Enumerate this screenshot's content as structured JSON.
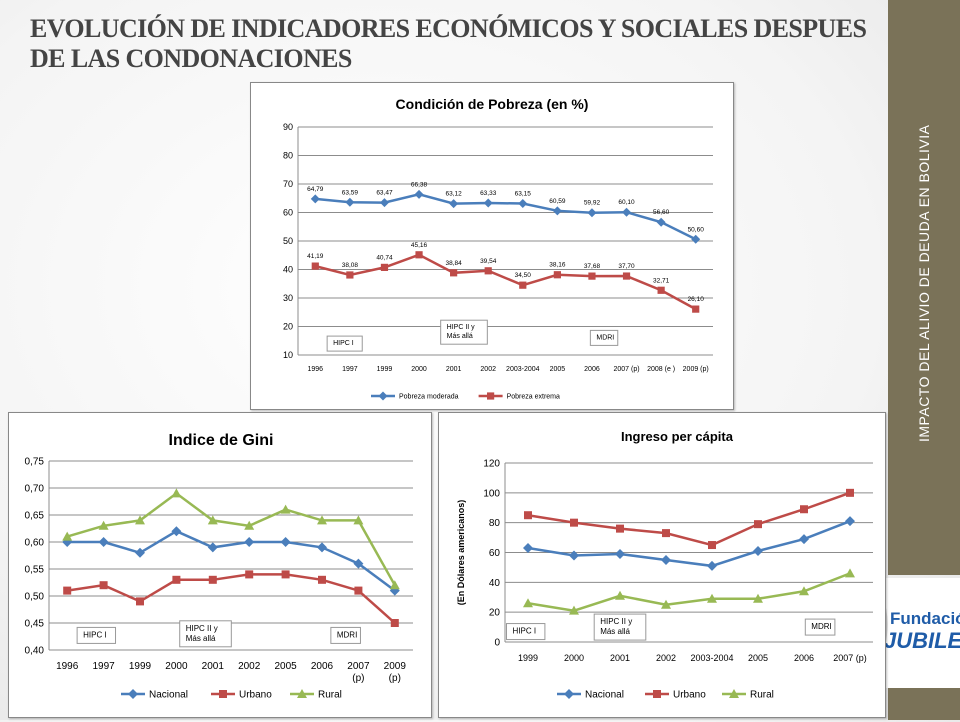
{
  "page": {
    "title": "EVOLUCIÓN DE INDICADORES ECONÓMICOS Y SOCIALES DESPUES DE LAS CONDONACIONES",
    "sidebar_text": "IMPACTO DEL ALIVIO DE DEUDA EN BOLIVIA",
    "logo": {
      "line1": "Fundación",
      "line2": "JUBILEO",
      "color": "#1f5ca8"
    }
  },
  "colors": {
    "blue": "#4a7ebb",
    "red": "#be4b48",
    "green": "#98b954",
    "sidebar": "#7a7258"
  },
  "chart_data": [
    {
      "type": "line",
      "title": "Condición de Pobreza (en %)",
      "categories": [
        "1996",
        "1997",
        "1999",
        "2000",
        "2001",
        "2002",
        "2003-2004",
        "2005",
        "2006",
        "2007 (p)",
        "2008 (e )",
        "2009 (p)"
      ],
      "ylim": [
        10,
        90
      ],
      "yticks": [
        "10",
        "20",
        "30",
        "40",
        "50",
        "60",
        "70",
        "80",
        "90"
      ],
      "series": [
        {
          "name": "Pobreza moderada",
          "color": "#4a7ebb",
          "marker": "diamond",
          "values": [
            64.79,
            63.59,
            63.47,
            66.38,
            63.12,
            63.33,
            63.15,
            60.59,
            59.92,
            60.1,
            56.6,
            50.6
          ],
          "labels": [
            "64,79",
            "63,59",
            "63,47",
            "66,38",
            "63,12",
            "63,33",
            "63,15",
            "60,59",
            "59,92",
            "60,10",
            "56,60",
            "50,60"
          ]
        },
        {
          "name": "Pobreza extrema",
          "color": "#be4b48",
          "marker": "square",
          "values": [
            41.19,
            38.08,
            40.74,
            45.16,
            38.84,
            39.54,
            34.5,
            38.16,
            37.68,
            37.7,
            32.71,
            26.1
          ],
          "labels": [
            "41,19",
            "38,08",
            "40,74",
            "45,16",
            "38,84",
            "39,54",
            "34,50",
            "38,16",
            "37,68",
            "37,70",
            "32,71",
            "26,10"
          ]
        }
      ],
      "annotations": [
        {
          "text": [
            "HIPC I"
          ],
          "at_category": 0.85,
          "y": 14
        },
        {
          "text": [
            "HIPC II y",
            "Más allá"
          ],
          "at_category": 4.3,
          "y": 18
        },
        {
          "text": [
            "MDRI"
          ],
          "at_category": 8.35,
          "y": 16
        }
      ],
      "legend": "bottom"
    },
    {
      "type": "line",
      "title": "Indice de Gini",
      "categories": [
        "1996",
        "1997",
        "1999",
        "2000",
        "2001",
        "2002",
        "2005",
        "2006",
        "2007|(p)",
        "2009|(p)"
      ],
      "ylim": [
        0.4,
        0.75
      ],
      "yticks": [
        "0,40",
        "0,45",
        "0,50",
        "0,55",
        "0,60",
        "0,65",
        "0,70",
        "0,75"
      ],
      "series": [
        {
          "name": "Nacional",
          "color": "#4a7ebb",
          "marker": "diamond",
          "values": [
            0.6,
            0.6,
            0.58,
            0.62,
            0.59,
            0.6,
            0.6,
            0.59,
            0.56,
            0.51
          ]
        },
        {
          "name": "Urbano",
          "color": "#be4b48",
          "marker": "square",
          "values": [
            0.51,
            0.52,
            0.49,
            0.53,
            0.53,
            0.54,
            0.54,
            0.53,
            0.51,
            0.45
          ]
        },
        {
          "name": "Rural",
          "color": "#98b954",
          "marker": "triangle",
          "values": [
            0.61,
            0.63,
            0.64,
            0.69,
            0.64,
            0.63,
            0.66,
            0.64,
            0.64,
            0.52
          ]
        }
      ],
      "annotations": [
        {
          "text": [
            "HIPC I"
          ],
          "at_category": 0.8,
          "y": 0.427
        },
        {
          "text": [
            "HIPC II y",
            "Más allá"
          ],
          "at_category": 3.8,
          "y": 0.43
        },
        {
          "text": [
            "MDRI"
          ],
          "at_category": 7.65,
          "y": 0.427
        }
      ],
      "legend": "bottom"
    },
    {
      "type": "line",
      "title": "Ingreso per cápita",
      "ylabel": "(En Dólares americanos)",
      "categories": [
        "1999",
        "2000",
        "2001",
        "2002",
        "2003-2004",
        "2005",
        "2006",
        "2007 (p)"
      ],
      "ylim": [
        0,
        120
      ],
      "yticks": [
        "0",
        "20",
        "40",
        "60",
        "80",
        "100",
        "120"
      ],
      "series": [
        {
          "name": "Nacional",
          "color": "#4a7ebb",
          "marker": "diamond",
          "values": [
            63,
            58,
            59,
            55,
            51,
            61,
            69,
            81
          ]
        },
        {
          "name": "Urbano",
          "color": "#be4b48",
          "marker": "square",
          "values": [
            85,
            80,
            76,
            73,
            65,
            79,
            89,
            100
          ]
        },
        {
          "name": "Rural",
          "color": "#98b954",
          "marker": "triangle",
          "values": [
            26,
            21,
            31,
            25,
            29,
            29,
            34,
            46
          ]
        }
      ],
      "annotations": [
        {
          "text": [
            "HIPC I"
          ],
          "at_category": -0.05,
          "y": 7
        },
        {
          "text": [
            "HIPC II y",
            "Más allá"
          ],
          "at_category": 2.0,
          "y": 10
        },
        {
          "text": [
            "MDRI"
          ],
          "at_category": 6.35,
          "y": 10
        }
      ],
      "legend": "bottom"
    }
  ]
}
